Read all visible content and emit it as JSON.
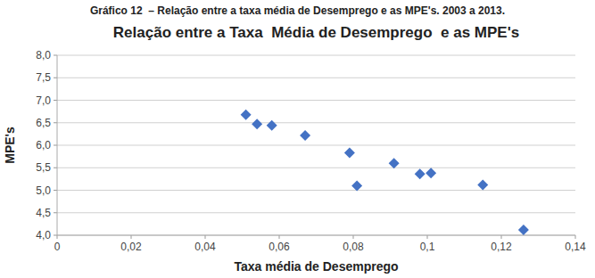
{
  "chart_data": {
    "type": "scatter",
    "title": "Relação entre a Taxa  Média de Desemprego  e as MPE's",
    "subtitle": "Gráfico 12  – Relação entre a taxa média de Desemprego e as MPE's. 2003 a 2013.",
    "xlabel": "Taxa média de Desemprego",
    "ylabel": "MPE's",
    "x": [
      0.051,
      0.054,
      0.058,
      0.067,
      0.079,
      0.081,
      0.091,
      0.098,
      0.101,
      0.115,
      0.126
    ],
    "values": [
      6.68,
      6.47,
      6.44,
      6.22,
      5.83,
      5.1,
      5.6,
      5.36,
      5.38,
      5.12,
      4.12
    ],
    "color": "#4472C4",
    "marker": "diamond",
    "xlim": [
      0,
      0.14
    ],
    "ylim": [
      4.0,
      8.0
    ],
    "xticks": [
      0,
      {
        "value": 0.02,
        "label": "0,02"
      },
      {
        "value": 0.04,
        "label": "0,04"
      },
      {
        "value": 0.06,
        "label": "0,06"
      },
      {
        "value": 0.08,
        "label": "0,08"
      },
      {
        "value": 0.1,
        "label": "0,1"
      },
      {
        "value": 0.12,
        "label": "0,12"
      },
      {
        "value": 0.14,
        "label": "0,14"
      }
    ],
    "yticks": [
      {
        "value": 4.0,
        "label": "4,0"
      },
      {
        "value": 4.5,
        "label": "4,5"
      },
      {
        "value": 5.0,
        "label": "5,0"
      },
      {
        "value": 5.5,
        "label": "5,5"
      },
      {
        "value": 6.0,
        "label": "6,0"
      },
      {
        "value": 6.5,
        "label": "6,5"
      },
      {
        "value": 7.0,
        "label": "7,0"
      },
      {
        "value": 7.5,
        "label": "7,5"
      },
      {
        "value": 8.0,
        "label": "8,0"
      }
    ],
    "grid": "y"
  }
}
